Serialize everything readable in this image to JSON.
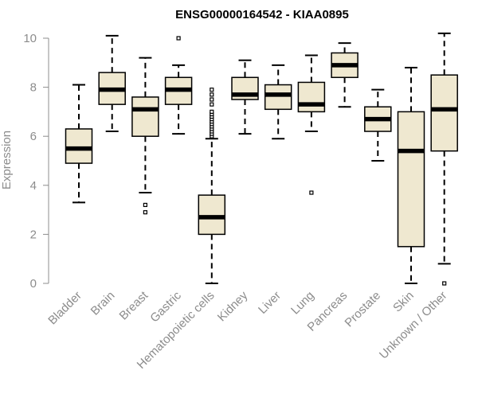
{
  "chart_data": {
    "type": "boxplot",
    "title": "ENSG00000164542 - KIAA0895",
    "xlabel": "",
    "ylabel": "Expression",
    "ylim": [
      0,
      10
    ],
    "yticks": [
      0,
      2,
      4,
      6,
      8,
      10
    ],
    "grid": false,
    "colors": {
      "box_fill": "#efe8d0",
      "stroke": "#000000",
      "axis": "#8c8c8c"
    },
    "categories": [
      "Bladder",
      "Brain",
      "Breast",
      "Gastric",
      "Hematopoietic cells",
      "Kidney",
      "Liver",
      "Lung",
      "Pancreas",
      "Prostate",
      "Skin",
      "Unknown / Other"
    ],
    "boxes": [
      {
        "name": "Bladder",
        "whisker_low": 3.3,
        "q1": 4.9,
        "median": 5.5,
        "q3": 6.3,
        "whisker_high": 8.1,
        "outliers": []
      },
      {
        "name": "Brain",
        "whisker_low": 6.2,
        "q1": 7.3,
        "median": 7.9,
        "q3": 8.6,
        "whisker_high": 10.1,
        "outliers": []
      },
      {
        "name": "Breast",
        "whisker_low": 3.7,
        "q1": 6.0,
        "median": 7.1,
        "q3": 7.6,
        "whisker_high": 9.2,
        "outliers": [
          3.2,
          2.9
        ]
      },
      {
        "name": "Gastric",
        "whisker_low": 6.1,
        "q1": 7.3,
        "median": 7.9,
        "q3": 8.4,
        "whisker_high": 8.9,
        "outliers": [
          10.0
        ]
      },
      {
        "name": "Hematopoietic cells",
        "whisker_low": 0.0,
        "q1": 2.0,
        "median": 2.7,
        "q3": 3.6,
        "whisker_high": 5.9,
        "outliers": [
          6.0,
          6.1,
          6.2,
          6.3,
          6.4,
          6.5,
          6.6,
          6.7,
          6.8,
          6.9,
          7.0,
          7.3,
          7.5,
          7.7,
          7.9
        ]
      },
      {
        "name": "Kidney",
        "whisker_low": 6.1,
        "q1": 7.5,
        "median": 7.7,
        "q3": 8.4,
        "whisker_high": 9.1,
        "outliers": []
      },
      {
        "name": "Liver",
        "whisker_low": 5.9,
        "q1": 7.1,
        "median": 7.7,
        "q3": 8.1,
        "whisker_high": 8.9,
        "outliers": []
      },
      {
        "name": "Lung",
        "whisker_low": 6.2,
        "q1": 7.0,
        "median": 7.3,
        "q3": 8.2,
        "whisker_high": 9.3,
        "outliers": [
          3.7
        ]
      },
      {
        "name": "Pancreas",
        "whisker_low": 7.2,
        "q1": 8.4,
        "median": 8.9,
        "q3": 9.4,
        "whisker_high": 9.8,
        "outliers": []
      },
      {
        "name": "Prostate",
        "whisker_low": 5.0,
        "q1": 6.2,
        "median": 6.7,
        "q3": 7.2,
        "whisker_high": 7.9,
        "outliers": []
      },
      {
        "name": "Skin",
        "whisker_low": 0.0,
        "q1": 1.5,
        "median": 5.4,
        "q3": 7.0,
        "whisker_high": 8.8,
        "outliers": []
      },
      {
        "name": "Unknown / Other",
        "whisker_low": 0.8,
        "q1": 5.4,
        "median": 7.1,
        "q3": 8.5,
        "whisker_high": 10.2,
        "outliers": [
          0.0
        ]
      }
    ]
  }
}
